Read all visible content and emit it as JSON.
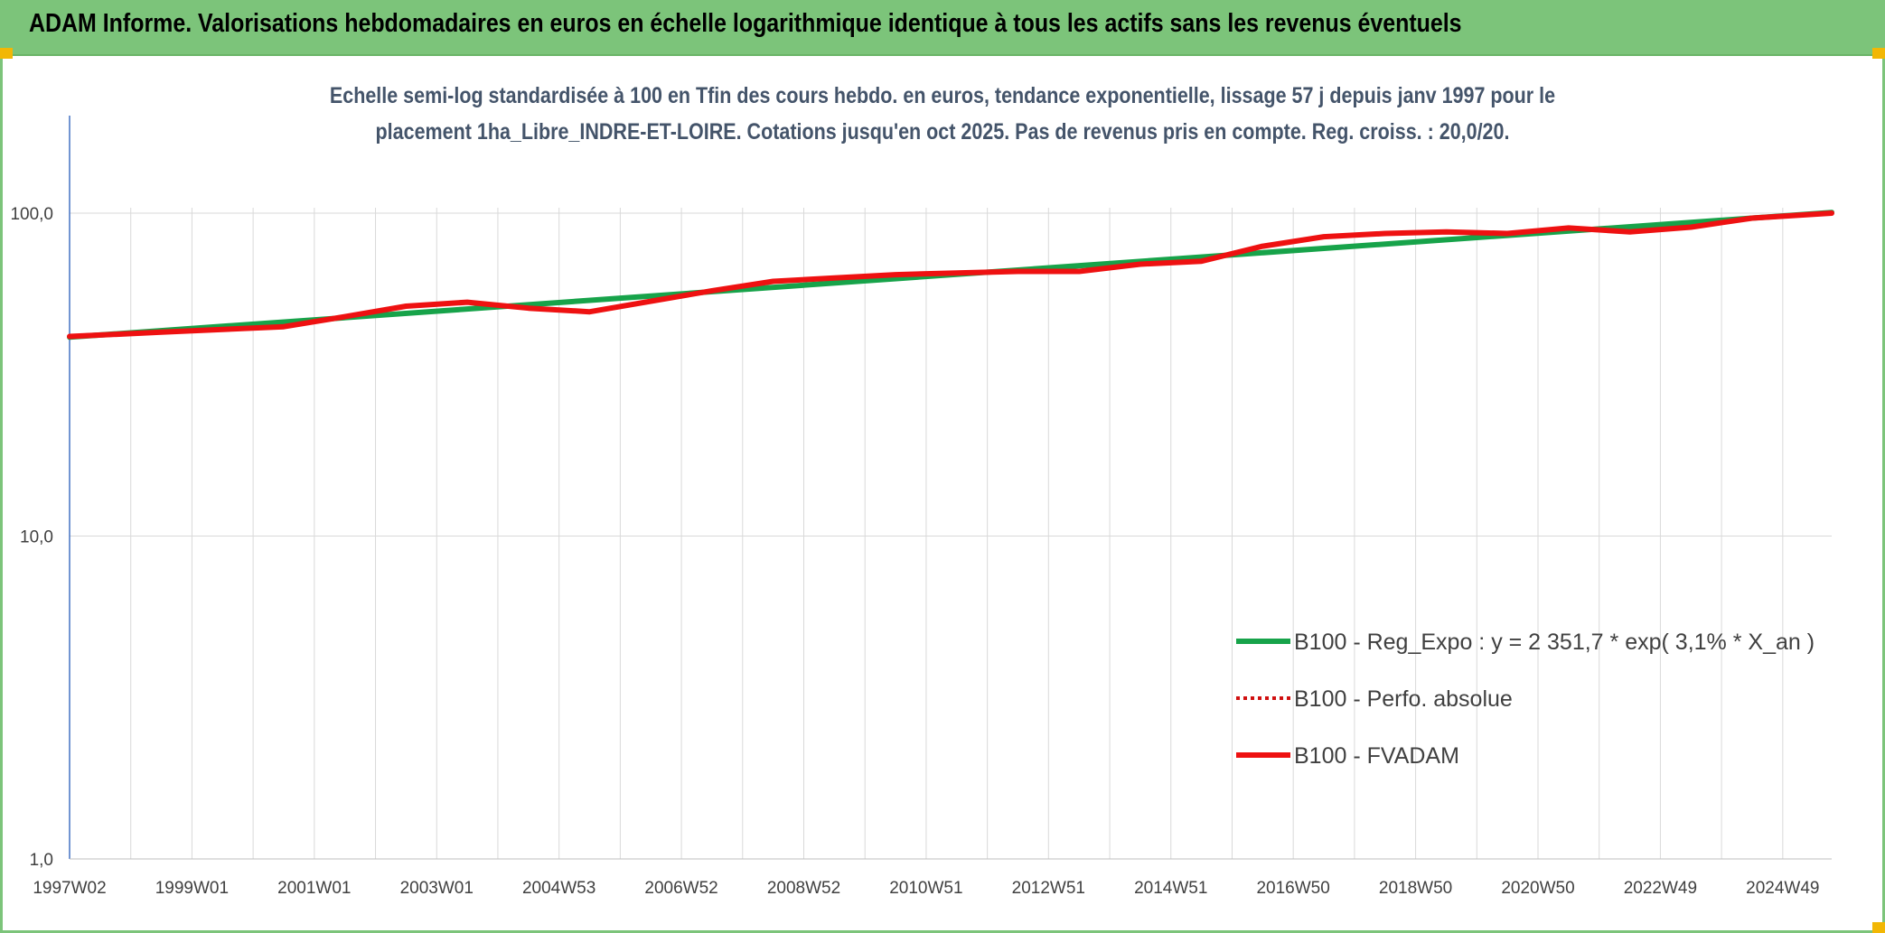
{
  "header": {
    "title": "ADAM Informe. Valorisations hebdomadaires en euros en échelle logarithmique identique à tous les actifs sans les revenus éventuels"
  },
  "colors": {
    "header_bg": "#7cc47a",
    "corner_accent": "#f2b705",
    "trend_line": "#17a34a",
    "fvadam_line": "#ee1111",
    "perfo_line": "#d01010",
    "subtitle_text": "#44546a"
  },
  "chart_data": {
    "type": "line",
    "subtitle_line1": "Echelle semi-log standardisée à 100 en Tfin des cours hebdo. en euros, tendance exponentielle, lissage 57 j depuis janv 1997 pour le",
    "subtitle_line2": "placement 1ha_Libre_INDRE-ET-LOIRE. Cotations jusqu'en oct 2025. Pas de revenus pris en compte. Reg. croiss. : 20,0/20.",
    "y_scale": "log",
    "ylim": [
      1,
      100
    ],
    "y_ticks": [
      "1,0",
      "10,0",
      "100,0"
    ],
    "x_categories": [
      "1997W02",
      "1999W01",
      "2001W01",
      "2003W01",
      "2004W53",
      "2006W52",
      "2008W52",
      "2010W51",
      "2012W51",
      "2014W51",
      "2016W50",
      "2018W50",
      "2020W50",
      "2022W49",
      "2024W49"
    ],
    "grid": "on",
    "legend_position": "bottom-right",
    "legend": [
      {
        "key": "reg",
        "label": "B100 - Reg_Expo : y = 2 351,7 * exp( 3,1% *  X_an )"
      },
      {
        "key": "perfo",
        "label": "B100 - Perfo. absolue"
      },
      {
        "key": "fvadam",
        "label": "B100 - FVADAM"
      }
    ],
    "series": [
      {
        "key": "reg",
        "name": "B100 - Reg_Expo : y = 2 351,7 * exp( 3,1% *  X_an )",
        "x": [
          1997.0,
          2025.8
        ],
        "values": [
          41.3,
          100.5
        ]
      },
      {
        "key": "perfo",
        "name": "B100 - Perfo. absolue",
        "x": [
          1997.0,
          1998.5,
          2000.5,
          2001.5,
          2002.5,
          2003.5,
          2004.5,
          2005.5,
          2007.5,
          2008.5,
          2009.5,
          2010.5,
          2011.5,
          2012.5,
          2013.5,
          2014.5,
          2015.5,
          2016.5,
          2017.5,
          2018.5,
          2019.5,
          2020.5,
          2021.5,
          2022.5,
          2023.5,
          2024.5,
          2025.8
        ],
        "values": [
          41.5,
          42.8,
          44.5,
          47.8,
          51.5,
          53.0,
          50.8,
          49.5,
          57.5,
          61.5,
          63.0,
          64.5,
          65.3,
          66.0,
          66.0,
          69.5,
          71.0,
          79.0,
          84.5,
          86.5,
          87.5,
          86.5,
          90.0,
          87.5,
          90.5,
          96.5,
          100.0
        ]
      },
      {
        "key": "fvadam",
        "name": "B100 - FVADAM",
        "x": [
          1997.0,
          1998.5,
          2000.5,
          2001.5,
          2002.5,
          2003.5,
          2004.5,
          2005.5,
          2007.5,
          2008.5,
          2009.5,
          2010.5,
          2011.5,
          2012.5,
          2013.5,
          2014.5,
          2015.5,
          2016.5,
          2017.5,
          2018.5,
          2019.5,
          2020.5,
          2021.5,
          2022.5,
          2023.5,
          2024.5,
          2025.8
        ],
        "values": [
          41.5,
          42.8,
          44.5,
          47.8,
          51.5,
          53.0,
          50.8,
          49.5,
          57.5,
          61.5,
          63.0,
          64.5,
          65.3,
          66.0,
          66.0,
          69.5,
          71.0,
          79.0,
          84.5,
          86.5,
          87.5,
          86.5,
          90.0,
          87.5,
          90.5,
          96.5,
          100.0
        ]
      }
    ]
  }
}
